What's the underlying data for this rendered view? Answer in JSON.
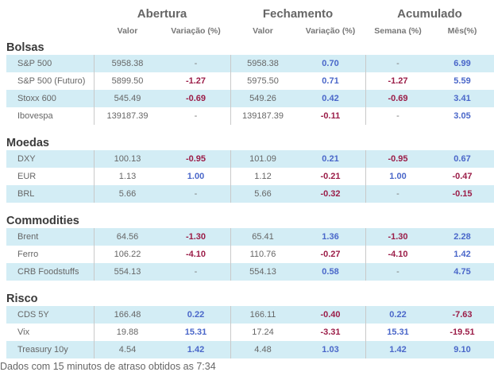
{
  "headers": {
    "groups": [
      "Abertura",
      "Fechamento",
      "Acumulado"
    ],
    "columns": [
      "Valor",
      "Variação (%)",
      "Valor",
      "Variação (%)",
      "Semana (%)",
      "Mês(%)"
    ]
  },
  "sections": [
    {
      "title": "Bolsas",
      "rows": [
        {
          "name": "S&P 500",
          "open_value": "5958.38",
          "open_change": "-",
          "close_value": "5958.38",
          "close_change": "0.70",
          "week": "-",
          "month": "6.99"
        },
        {
          "name": "S&P 500 (Futuro)",
          "open_value": "5899.50",
          "open_change": "-1.27",
          "close_value": "5975.50",
          "close_change": "0.71",
          "week": "-1.27",
          "month": "5.59"
        },
        {
          "name": "Stoxx 600",
          "open_value": "545.49",
          "open_change": "-0.69",
          "close_value": "549.26",
          "close_change": "0.42",
          "week": "-0.69",
          "month": "3.41"
        },
        {
          "name": "Ibovespa",
          "open_value": "139187.39",
          "open_change": "-",
          "close_value": "139187.39",
          "close_change": "-0.11",
          "week": "-",
          "month": "3.05"
        }
      ]
    },
    {
      "title": "Moedas",
      "rows": [
        {
          "name": "DXY",
          "open_value": "100.13",
          "open_change": "-0.95",
          "close_value": "101.09",
          "close_change": "0.21",
          "week": "-0.95",
          "month": "0.67"
        },
        {
          "name": "EUR",
          "open_value": "1.13",
          "open_change": "1.00",
          "close_value": "1.12",
          "close_change": "-0.21",
          "week": "1.00",
          "month": "-0.47"
        },
        {
          "name": "BRL",
          "open_value": "5.66",
          "open_change": "-",
          "close_value": "5.66",
          "close_change": "-0.32",
          "week": "-",
          "month": "-0.15"
        }
      ]
    },
    {
      "title": "Commodities",
      "rows": [
        {
          "name": "Brent",
          "open_value": "64.56",
          "open_change": "-1.30",
          "close_value": "65.41",
          "close_change": "1.36",
          "week": "-1.30",
          "month": "2.28"
        },
        {
          "name": "Ferro",
          "open_value": "106.22",
          "open_change": "-4.10",
          "close_value": "110.76",
          "close_change": "-0.27",
          "week": "-4.10",
          "month": "1.42"
        },
        {
          "name": "CRB Foodstuffs",
          "open_value": "554.13",
          "open_change": "-",
          "close_value": "554.13",
          "close_change": "0.58",
          "week": "-",
          "month": "4.75"
        }
      ]
    },
    {
      "title": "Risco",
      "rows": [
        {
          "name": "CDS 5Y",
          "open_value": "166.48",
          "open_change": "0.22",
          "close_value": "166.11",
          "close_change": "-0.40",
          "week": "0.22",
          "month": "-7.63"
        },
        {
          "name": "Vix",
          "open_value": "19.88",
          "open_change": "15.31",
          "close_value": "17.24",
          "close_change": "-3.31",
          "week": "15.31",
          "month": "-19.51"
        },
        {
          "name": "Treasury 10y",
          "open_value": "4.54",
          "open_change": "1.42",
          "close_value": "4.48",
          "close_change": "1.03",
          "week": "1.42",
          "month": "9.10"
        }
      ]
    }
  ],
  "colors": {
    "positive": "#4a67c9",
    "negative": "#9b1d48",
    "row_shade": "#d3edf5"
  },
  "footer": "Dados com 15 minutos de atraso obtidos as 7:34"
}
